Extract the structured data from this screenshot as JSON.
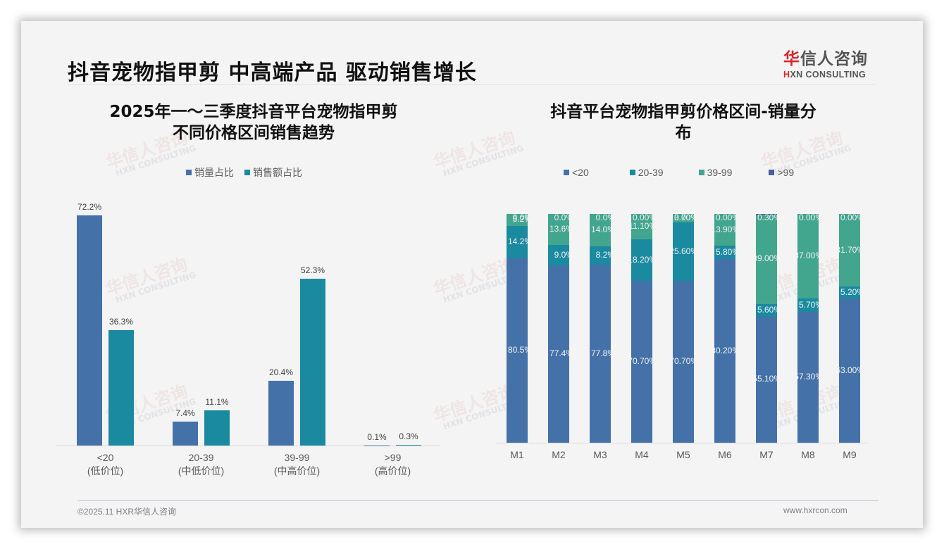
{
  "header": {
    "title": "抖音宠物指甲剪 中高端产品 驱动销售增长",
    "logo_cn_first": "华",
    "logo_cn_rest": "信人咨询",
    "logo_en_first": "H",
    "logo_en_rest": "XN CONSULTING"
  },
  "watermark": {
    "cn": "华信人咨询",
    "en": "HXN CONSULTING"
  },
  "colors": {
    "volume": "#4472a8",
    "revenue": "#1a8aa0",
    "lt20": "#4472a8",
    "r20_39": "#1a8aa0",
    "r39_99": "#42a58e",
    "gt99": "#4a5f9c"
  },
  "chart_data": [
    {
      "type": "bar",
      "title": "2025年一～三季度抖音平台宠物指甲剪 不同价格区间销售趋势",
      "title_line1": "2025年一～三季度抖音平台宠物指甲剪",
      "title_line2": "不同价格区间销售趋势",
      "legend": [
        "销量占比",
        "销售额占比"
      ],
      "legend_position": "top",
      "categories": [
        "<20",
        "20-39",
        "39-99",
        ">99"
      ],
      "category_sublabels": [
        "(低价位)",
        "(中低价位)",
        "(中高价位)",
        "(高价位)"
      ],
      "series": [
        {
          "name": "销量占比",
          "values": [
            72.2,
            7.4,
            20.4,
            0.1
          ],
          "labels": [
            "72.2%",
            "7.4%",
            "20.4%",
            "0.1%"
          ]
        },
        {
          "name": "销售额占比",
          "values": [
            36.3,
            11.1,
            52.3,
            0.3
          ],
          "labels": [
            "36.3%",
            "11.1%",
            "52.3%",
            "0.3%"
          ]
        }
      ],
      "xlabel": "",
      "ylabel": "",
      "grid": false,
      "ylim": [
        0,
        80
      ]
    },
    {
      "type": "bar",
      "stacked": true,
      "percent_stacked": true,
      "title": "抖音平台宠物指甲剪价格区间-销量分布",
      "title_line1": "抖音平台宠物指甲剪价格区间-销量分",
      "title_line2": "布",
      "legend": [
        "<20",
        "20-39",
        "39-99",
        ">99"
      ],
      "legend_position": "top",
      "categories": [
        "M1",
        "M2",
        "M3",
        "M4",
        "M5",
        "M6",
        "M7",
        "M8",
        "M9"
      ],
      "series": [
        {
          "name": "<20",
          "values": [
            80.5,
            77.4,
            77.8,
            70.7,
            70.7,
            80.2,
            55.1,
            57.3,
            63.0
          ],
          "labels": [
            "80.5%",
            "77.4%",
            "77.8%",
            "70.70%",
            "70.70%",
            "80.20%",
            "55.10%",
            "57.30%",
            "63.00%"
          ]
        },
        {
          "name": "20-39",
          "values": [
            14.2,
            9.0,
            8.2,
            18.2,
            25.6,
            5.8,
            5.6,
            5.7,
            5.2
          ],
          "labels": [
            "14.2%",
            "9.0%",
            "8.2%",
            "18.20%",
            "25.60%",
            "5.80%",
            "5.60%",
            "5.70%",
            "5.20%"
          ]
        },
        {
          "name": "39-99",
          "values": [
            5.2,
            13.6,
            14.0,
            11.1,
            3.7,
            13.9,
            39.0,
            37.0,
            31.7
          ],
          "labels": [
            "5.2%",
            "13.6%",
            "14.0%",
            "11.10%",
            "3.70%",
            "13.90%",
            "39.00%",
            "37.00%",
            "31.70%"
          ]
        },
        {
          "name": ">99",
          "values": [
            0.0,
            0.0,
            0.0,
            0.0,
            0.0,
            0.0,
            0.3,
            0.0,
            0.0
          ],
          "labels": [
            "0.0%",
            "0.0%",
            "0.0%",
            "0.00%",
            "0.00%",
            "0.00%",
            "0.30%",
            "0.00%",
            "0.00%"
          ]
        }
      ],
      "xlabel": "",
      "ylabel": "",
      "grid": false,
      "ylim": [
        0,
        100
      ]
    }
  ],
  "footer": {
    "copyright": "©2025.11 HXR华信人咨询",
    "website": "www.hxrcon.com"
  }
}
